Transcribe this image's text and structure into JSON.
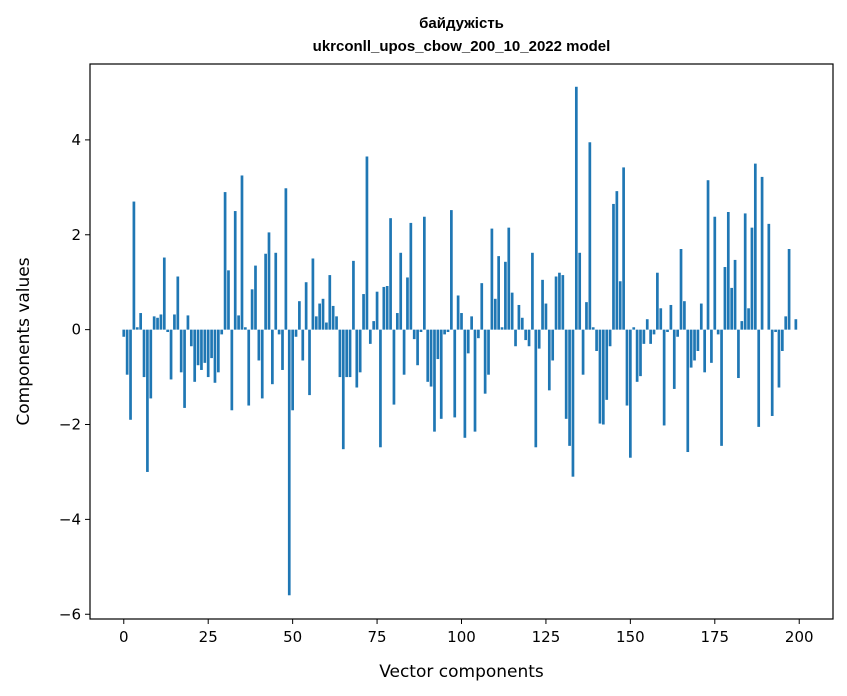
{
  "chart_data": {
    "type": "bar",
    "title": "байдужість",
    "subtitle": "ukrconll_upos_cbow_200_10_2022 model",
    "xlabel": "Vector components",
    "ylabel": "Components values",
    "xlim": [
      -10,
      210
    ],
    "ylim": [
      -6.1,
      5.6
    ],
    "xticks": [
      0,
      25,
      50,
      75,
      100,
      125,
      150,
      175,
      200
    ],
    "yticks": [
      -6,
      -4,
      -2,
      0,
      2,
      4
    ],
    "grid": false,
    "color": "#1f77b4",
    "x": [
      0,
      1,
      2,
      3,
      4,
      5,
      6,
      7,
      8,
      9,
      10,
      11,
      12,
      13,
      14,
      15,
      16,
      17,
      18,
      19,
      20,
      21,
      22,
      23,
      24,
      25,
      26,
      27,
      28,
      29,
      30,
      31,
      32,
      33,
      34,
      35,
      36,
      37,
      38,
      39,
      40,
      41,
      42,
      43,
      44,
      45,
      46,
      47,
      48,
      49,
      50,
      51,
      52,
      53,
      54,
      55,
      56,
      57,
      58,
      59,
      60,
      61,
      62,
      63,
      64,
      65,
      66,
      67,
      68,
      69,
      70,
      71,
      72,
      73,
      74,
      75,
      76,
      77,
      78,
      79,
      80,
      81,
      82,
      83,
      84,
      85,
      86,
      87,
      88,
      89,
      90,
      91,
      92,
      93,
      94,
      95,
      96,
      97,
      98,
      99,
      100,
      101,
      102,
      103,
      104,
      105,
      106,
      107,
      108,
      109,
      110,
      111,
      112,
      113,
      114,
      115,
      116,
      117,
      118,
      119,
      120,
      121,
      122,
      123,
      124,
      125,
      126,
      127,
      128,
      129,
      130,
      131,
      132,
      133,
      134,
      135,
      136,
      137,
      138,
      139,
      140,
      141,
      142,
      143,
      144,
      145,
      146,
      147,
      148,
      149,
      150,
      151,
      152,
      153,
      154,
      155,
      156,
      157,
      158,
      159,
      160,
      161,
      162,
      163,
      164,
      165,
      166,
      167,
      168,
      169,
      170,
      171,
      172,
      173,
      174,
      175,
      176,
      177,
      178,
      179,
      180,
      181,
      182,
      183,
      184,
      185,
      186,
      187,
      188,
      189,
      190,
      191,
      192,
      193,
      194,
      195,
      196,
      197,
      198,
      199
    ],
    "values": [
      -0.15,
      -0.95,
      -1.9,
      2.7,
      0.05,
      0.35,
      -1.0,
      -3.0,
      -1.45,
      0.28,
      0.25,
      0.32,
      1.52,
      -0.05,
      -1.05,
      0.32,
      1.12,
      -0.9,
      -1.65,
      0.3,
      -0.35,
      -1.1,
      -0.75,
      -0.85,
      -0.7,
      -1.0,
      -0.6,
      -1.12,
      -0.9,
      -0.1,
      2.9,
      1.25,
      -1.7,
      2.5,
      0.3,
      3.25,
      0.05,
      -1.6,
      0.85,
      1.35,
      -0.65,
      -1.45,
      1.6,
      2.05,
      -1.15,
      1.62,
      -0.1,
      -0.85,
      2.98,
      -5.6,
      -1.7,
      -0.15,
      0.6,
      -0.65,
      1.0,
      -1.38,
      1.5,
      0.28,
      0.55,
      0.65,
      0.15,
      1.15,
      0.5,
      0.28,
      -1.0,
      -2.52,
      -1.0,
      -1.0,
      1.45,
      -1.22,
      -0.9,
      0.75,
      3.65,
      -0.3,
      0.18,
      0.8,
      -2.48,
      0.9,
      0.92,
      2.35,
      -1.58,
      0.35,
      1.62,
      -0.95,
      1.1,
      2.25,
      -0.2,
      -0.75,
      -0.05,
      2.38,
      -1.1,
      -1.2,
      -2.15,
      -0.62,
      -1.88,
      -0.1,
      -0.05,
      2.52,
      -1.85,
      0.72,
      0.35,
      -2.28,
      -0.5,
      0.28,
      -2.15,
      -0.18,
      0.98,
      -1.35,
      -0.95,
      2.13,
      0.65,
      1.55,
      0.05,
      1.43,
      2.15,
      0.78,
      -0.35,
      0.52,
      0.25,
      -0.22,
      -0.35,
      1.62,
      -2.48,
      -0.4,
      1.05,
      0.55,
      -1.28,
      -0.65,
      1.12,
      1.2,
      1.15,
      -1.88,
      -2.45,
      -3.1,
      5.12,
      1.62,
      -0.95,
      0.58,
      3.95,
      0.05,
      -0.45,
      -1.98,
      -2.0,
      -1.48,
      -0.35,
      2.65,
      2.92,
      1.02,
      3.42,
      -1.6,
      -2.7,
      0.05,
      -1.1,
      -0.98,
      -0.3,
      0.22,
      -0.3,
      -0.1,
      1.2,
      0.45,
      -2.02,
      -0.05,
      0.52,
      -1.25,
      -0.15,
      1.7,
      0.6,
      -2.58,
      -0.8,
      -0.65,
      -0.45,
      0.55,
      -0.9,
      3.15,
      -0.7,
      2.38,
      -0.1,
      -2.45,
      1.32,
      2.48,
      0.88,
      1.47,
      -1.02,
      0.18,
      2.45,
      0.45,
      2.15,
      3.5,
      -2.05,
      3.22,
      0.0,
      2.23,
      -1.82,
      -0.05,
      -1.22,
      -0.45,
      0.28,
      1.7,
      0.0,
      0.22
    ]
  }
}
